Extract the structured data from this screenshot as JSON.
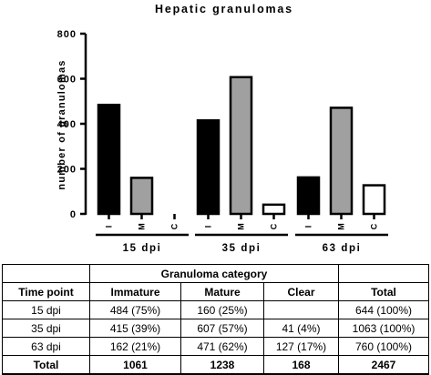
{
  "chart_data": {
    "type": "bar",
    "title": "Hepatic granulomas",
    "ylabel": "number of granulomas",
    "xlabel": "",
    "ylim": [
      0,
      800
    ],
    "yticks": [
      0,
      200,
      400,
      600,
      800
    ],
    "grid": false,
    "groups": [
      "15 dpi",
      "35 dpi",
      "63 dpi"
    ],
    "categories": [
      "I",
      "M",
      "C"
    ],
    "series": [
      {
        "values": [
          484,
          415,
          162
        ],
        "color": "#000000"
      },
      {
        "values": [
          160,
          607,
          471
        ],
        "color": "#a0a0a0"
      },
      {
        "values": [
          0,
          41,
          127
        ],
        "color": "#ffffff"
      }
    ]
  },
  "table": {
    "header1": [
      "",
      "Granuloma category",
      ""
    ],
    "header2": [
      "Time point",
      "Immature",
      "Mature",
      "Clear",
      "Total"
    ],
    "rows": [
      [
        "15 dpi",
        "484 (75%)",
        "160 (25%)",
        "",
        "644 (100%)"
      ],
      [
        "35 dpi",
        "415 (39%)",
        "607 (57%)",
        "41 (4%)",
        "1063 (100%)"
      ],
      [
        "63 dpi",
        "162 (21%)",
        "471 (62%)",
        "127 (17%)",
        "760 (100%)"
      ]
    ],
    "total": [
      "Total",
      "1061",
      "1238",
      "168",
      "2467"
    ]
  }
}
